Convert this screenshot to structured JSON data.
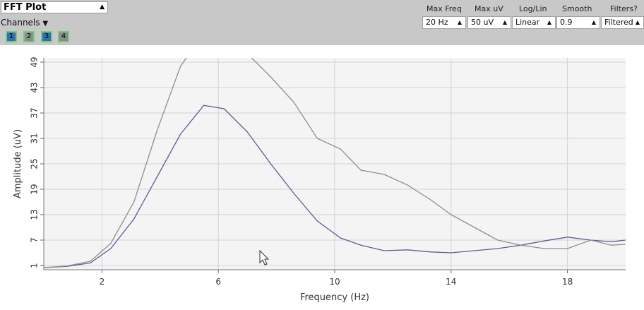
{
  "header": {
    "title_select": "FFT Plot",
    "channels_label": "Channels",
    "channels": [
      {
        "label": "1",
        "color": "#2f6fb6"
      },
      {
        "label": "2",
        "color": "#8a8a8a"
      },
      {
        "label": "3",
        "color": "#2f6fb6"
      },
      {
        "label": "4",
        "color": "#8a8a8a"
      }
    ],
    "controls": [
      {
        "label": "Max Freq",
        "value": "20 Hz"
      },
      {
        "label": "Max uV",
        "value": "50 uV"
      },
      {
        "label": "Log/Lin",
        "value": "Linear"
      },
      {
        "label": "Smooth",
        "value": "0.9"
      },
      {
        "label": "Filters?",
        "value": "Filtered"
      }
    ]
  },
  "chart_data": {
    "type": "line",
    "xlabel": "Frequency (Hz)",
    "ylabel": "Amplitude (uV)",
    "xlim": [
      0,
      20
    ],
    "ylim": [
      0,
      50
    ],
    "xticks": [
      2,
      6,
      10,
      14,
      18
    ],
    "yticks": [
      1,
      7,
      13,
      19,
      25,
      31,
      37,
      43,
      49
    ],
    "grid": true,
    "series": [
      {
        "color": "#5a5f96",
        "x": [
          0,
          0.8,
          1.6,
          2.3,
          3.1,
          3.9,
          4.7,
          5.5,
          6.2,
          7.0,
          7.8,
          8.6,
          9.4,
          10.2,
          10.9,
          11.7,
          12.5,
          13.3,
          14.0,
          14.8,
          15.6,
          16.4,
          17.2,
          18.0,
          18.8,
          19.5,
          20.0
        ],
        "y": [
          0.5,
          0.8,
          1.6,
          5.0,
          12.0,
          22.0,
          32.0,
          38.8,
          38.0,
          32.5,
          25.0,
          18.0,
          11.5,
          7.5,
          5.8,
          4.5,
          4.7,
          4.2,
          4.0,
          4.5,
          5.0,
          5.8,
          6.8,
          7.7,
          7.0,
          6.6,
          7.0
        ]
      },
      {
        "color": "#8e8e8e",
        "x": [
          0,
          0.8,
          1.6,
          2.3,
          3.1,
          3.9,
          4.7,
          5.5,
          6.2,
          7.0,
          7.8,
          8.6,
          9.4,
          10.2,
          10.9,
          11.7,
          12.5,
          13.3,
          14.0,
          14.8,
          15.6,
          16.4,
          17.2,
          18.0,
          18.8,
          19.5,
          20.0
        ],
        "y": [
          0.5,
          0.9,
          2.0,
          6.2,
          16.0,
          33.0,
          48.0,
          56.0,
          56.0,
          51.0,
          45.5,
          39.5,
          31.0,
          28.5,
          23.5,
          22.5,
          20.0,
          16.5,
          13.0,
          10.0,
          7.0,
          5.8,
          5.0,
          5.0,
          7.0,
          5.8,
          6.0
        ]
      }
    ]
  }
}
